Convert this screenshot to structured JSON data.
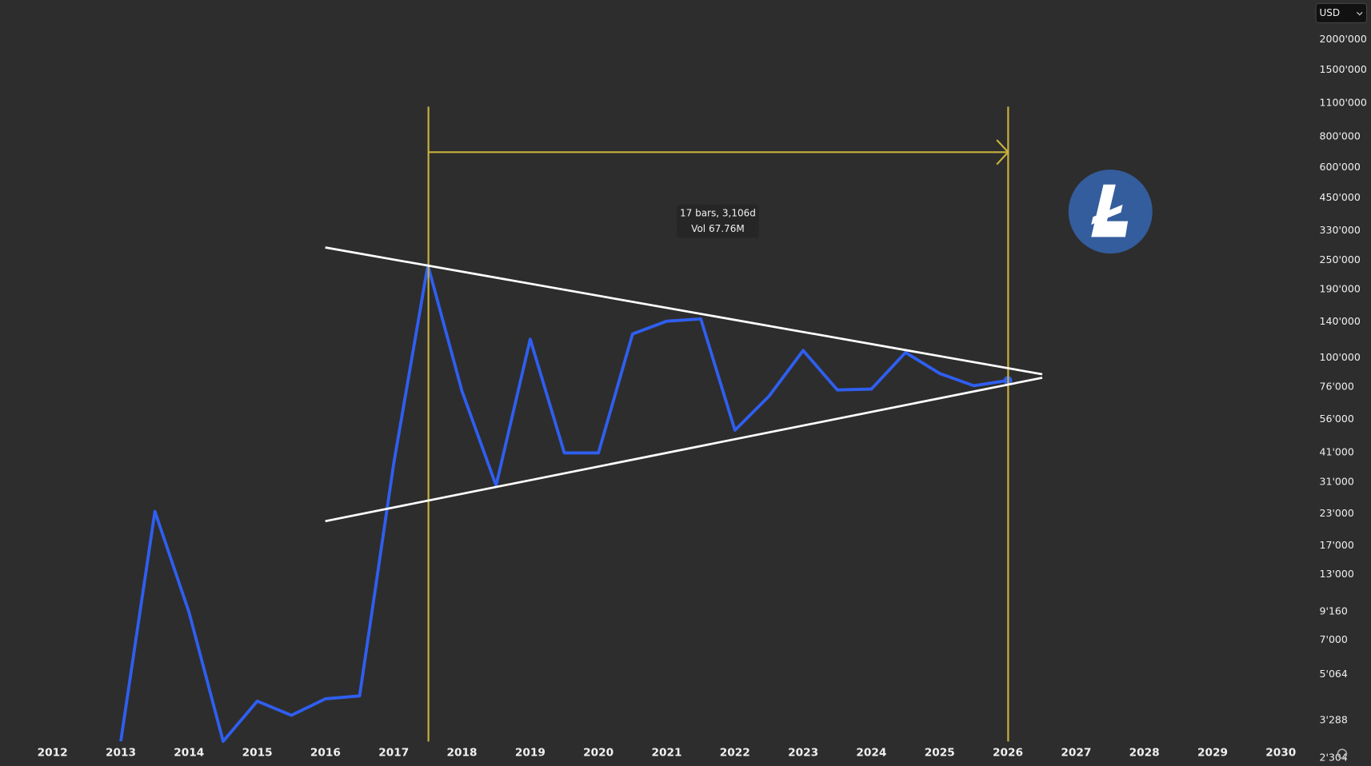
{
  "chart_data": {
    "type": "line",
    "currency": "USD",
    "tooltip": [
      "17 bars, 3,106d",
      "Vol 67.76M"
    ],
    "log_scale": true,
    "x": [
      2013,
      2013.5,
      2014,
      2014.5,
      2015,
      2015.5,
      2016,
      2016.5,
      2017,
      2017.5,
      2018,
      2018.5,
      2019,
      2019.5,
      2020,
      2020.5,
      2021,
      2021.5,
      2022,
      2022.5,
      2023,
      2023.5,
      2024,
      2024.5,
      2025,
      2025.5,
      2026
    ],
    "series": [
      {
        "color": "#2f5ff0",
        "values": [
          2700,
          23500,
          9100,
          2700,
          3940,
          3450,
          4030,
          4140,
          36900,
          239000,
          73000,
          30000,
          119000,
          40800,
          40800,
          125000,
          141000,
          144000,
          50500,
          69600,
          107000,
          73800,
          74400,
          105000,
          86200,
          76800,
          80700
        ]
      }
    ],
    "xlim": [
      2011.23,
      2030.45
    ],
    "xticks": [
      2012,
      2013,
      2014,
      2015,
      2016,
      2017,
      2018,
      2019,
      2020,
      2021,
      2022,
      2023,
      2024,
      2025,
      2026,
      2027,
      2028,
      2029,
      2030
    ],
    "ylim": [
      2140,
      2900000
    ],
    "yticks": [
      {
        "value": 2000000,
        "label": "2000'000"
      },
      {
        "value": 1500000,
        "label": "1500'000"
      },
      {
        "value": 1100000,
        "label": "1100'000"
      },
      {
        "value": 800000,
        "label": "800'000"
      },
      {
        "value": 600000,
        "label": "600'000"
      },
      {
        "value": 450000,
        "label": "450'000"
      },
      {
        "value": 330000,
        "label": "330'000"
      },
      {
        "value": 250000,
        "label": "250'000"
      },
      {
        "value": 190000,
        "label": "190'000"
      },
      {
        "value": 140000,
        "label": "140'000"
      },
      {
        "value": 100000,
        "label": "100'000"
      },
      {
        "value": 76000,
        "label": "76'000"
      },
      {
        "value": 56000,
        "label": "56'000"
      },
      {
        "value": 41000,
        "label": "41'000"
      },
      {
        "value": 31000,
        "label": "31'000"
      },
      {
        "value": 23000,
        "label": "23'000"
      },
      {
        "value": 17000,
        "label": "17'000"
      },
      {
        "value": 13000,
        "label": "13'000"
      },
      {
        "value": 9160,
        "label": "9'160"
      },
      {
        "value": 7000,
        "label": "7'000"
      },
      {
        "value": 5064,
        "label": "5'064"
      },
      {
        "value": 3288,
        "label": "3'288"
      },
      {
        "value": 2304,
        "label": "2'304"
      }
    ]
  }
}
